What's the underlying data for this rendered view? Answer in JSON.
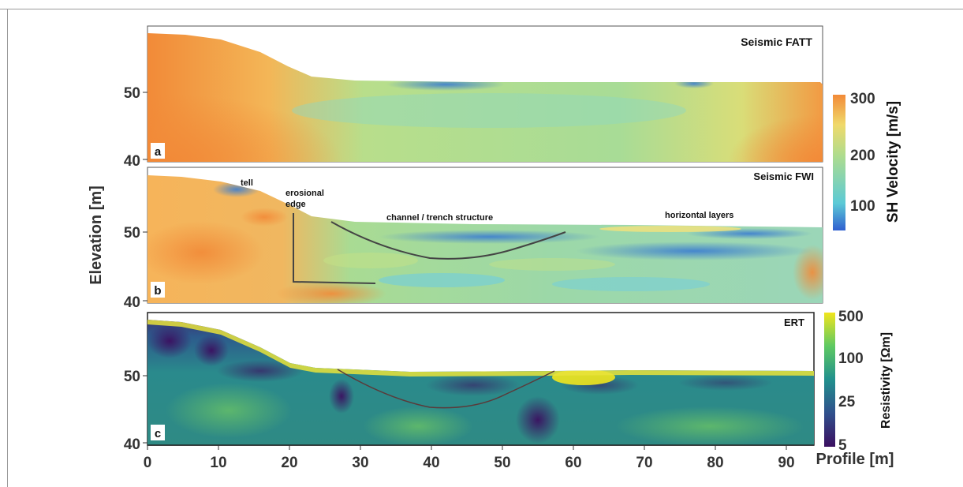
{
  "figure": {
    "ylabel": "Elevation [m]",
    "xlabel": "Profile [m]",
    "x_ticks": [
      "0",
      "10",
      "20",
      "30",
      "40",
      "50",
      "60",
      "70",
      "80",
      "90"
    ]
  },
  "panels": {
    "a": {
      "letter": "a",
      "title": "Seismic FATT",
      "y_ticks": [
        "50",
        "40"
      ]
    },
    "b": {
      "letter": "b",
      "title": "Seismic FWI",
      "y_ticks": [
        "50",
        "40"
      ],
      "annotations": {
        "tell": "tell",
        "erosional_1": "erosional",
        "erosional_2": "edge",
        "channel": "channel / trench structure",
        "horizontal": "horizontal layers"
      }
    },
    "c": {
      "letter": "c",
      "title": "ERT",
      "y_ticks": [
        "50",
        "40"
      ]
    }
  },
  "colorbars": {
    "velocity": {
      "label": "SH Velocity [m/s]",
      "ticks": [
        "300",
        "200",
        "100"
      ]
    },
    "resistivity": {
      "label": "Resistivity [Ωm]",
      "ticks": [
        "500",
        "100",
        "25",
        "5"
      ]
    }
  },
  "colors": {
    "orange": "#f28a38",
    "green": "#aedc8e",
    "cyan": "#5ccad6",
    "blue": "#2f5fd0",
    "viridis_dark": "#3b0f60",
    "viridis_teal": "#2a8a8c",
    "viridis_yellow": "#f1e51d"
  },
  "chart_data": [
    {
      "type": "heatmap",
      "title": "Seismic FATT",
      "xlabel": "Profile [m]",
      "ylabel": "Elevation [m]",
      "xlim": [
        0,
        94
      ],
      "ylim": [
        40,
        58
      ],
      "colorbar": {
        "label": "SH Velocity [m/s]",
        "range": [
          50,
          300
        ],
        "ticks": [
          100,
          200,
          300
        ]
      },
      "surface": {
        "x": [
          0,
          5,
          10,
          15,
          19,
          22,
          30,
          40,
          60,
          80,
          94
        ],
        "elevation": [
          57.9,
          57.5,
          56.8,
          55.5,
          53.5,
          52.0,
          51.2,
          51.0,
          51.0,
          51.0,
          50.6
        ]
      }
    },
    {
      "type": "heatmap",
      "title": "Seismic FWI",
      "xlabel": "Profile [m]",
      "ylabel": "Elevation [m]",
      "xlim": [
        0,
        94
      ],
      "ylim": [
        40,
        58
      ],
      "colorbar": {
        "label": "SH Velocity [m/s]",
        "range": [
          50,
          300
        ],
        "ticks": [
          100,
          200,
          300
        ]
      },
      "annotations": [
        "tell",
        "erosional edge",
        "channel / trench structure",
        "horizontal layers"
      ],
      "channel_curve": {
        "x": [
          26,
          35,
          43,
          52,
          59
        ],
        "elevation": [
          51.3,
          47.8,
          46.2,
          47.6,
          50.0
        ]
      },
      "edge_marker": {
        "x": [
          20.5,
          20.5,
          32.5
        ],
        "elevation": [
          52.5,
          43.0,
          42.8
        ]
      }
    },
    {
      "type": "heatmap",
      "title": "ERT",
      "xlabel": "Profile [m]",
      "ylabel": "Elevation [m]",
      "xlim": [
        0,
        94
      ],
      "ylim": [
        40,
        58
      ],
      "colorbar": {
        "label": "Resistivity [Ωm]",
        "scale": "log",
        "range": [
          5,
          500
        ],
        "ticks": [
          5,
          25,
          100,
          500
        ]
      },
      "channel_curve": {
        "x": [
          27,
          35,
          43,
          51,
          57
        ],
        "elevation": [
          51.0,
          47.0,
          45.3,
          47.0,
          50.5
        ]
      }
    }
  ]
}
